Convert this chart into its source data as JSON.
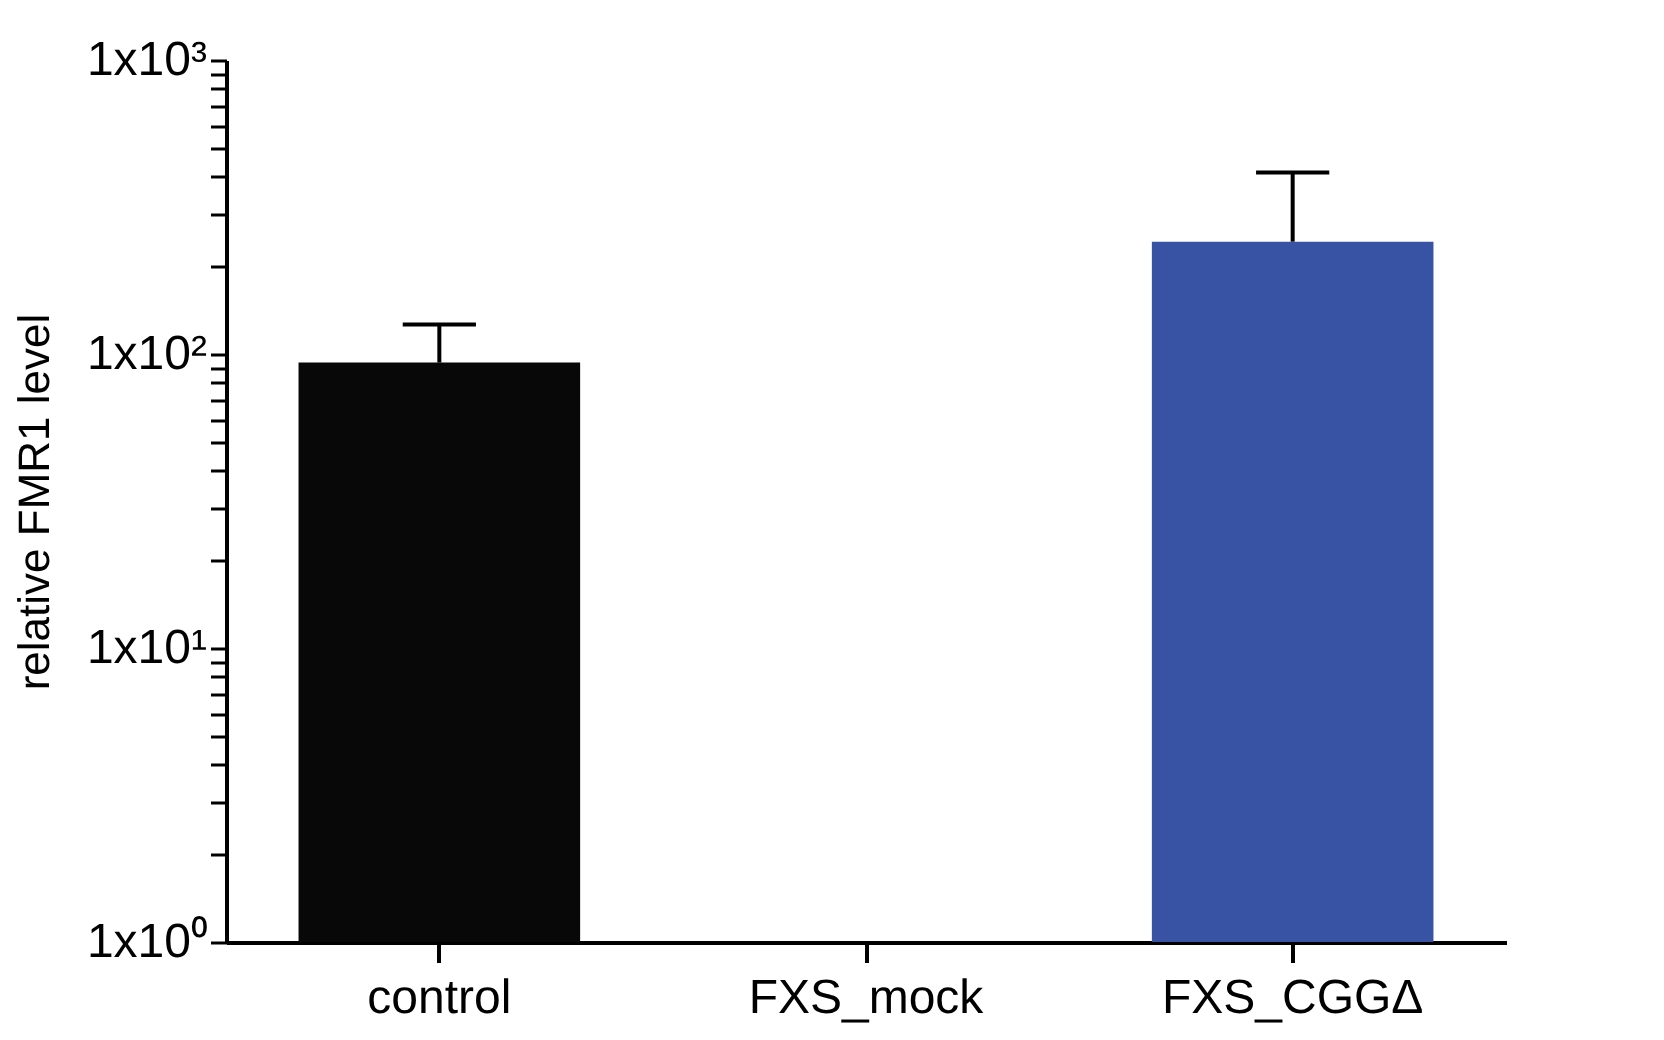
{
  "chart_data": {
    "type": "bar",
    "ylabel": "relative FMR1 level",
    "categories": [
      "control",
      "FXS_mock",
      "FXS_CGGΔ"
    ],
    "values": [
      93.5,
      null,
      241
    ],
    "colors": [
      "#080808",
      "#ffffff",
      "#3953a4"
    ],
    "errors": [
      [
        93.5,
        126
      ],
      null,
      [
        241,
        414
      ]
    ],
    "log": "y",
    "ylim": [
      1,
      1000
    ],
    "yticks": [
      {
        "value": 1,
        "label": "1x10⁰"
      },
      {
        "value": 2,
        "label": null
      },
      {
        "value": 3,
        "label": null
      },
      {
        "value": 4,
        "label": null
      },
      {
        "value": 5,
        "label": null
      },
      {
        "value": 6,
        "label": null
      },
      {
        "value": 7,
        "label": null
      },
      {
        "value": 8,
        "label": null
      },
      {
        "value": 9,
        "label": null
      },
      {
        "value": 10,
        "label": "1x10¹"
      },
      {
        "value": 20,
        "label": null
      },
      {
        "value": 30,
        "label": null
      },
      {
        "value": 40,
        "label": null
      },
      {
        "value": 50,
        "label": null
      },
      {
        "value": 60,
        "label": null
      },
      {
        "value": 70,
        "label": null
      },
      {
        "value": 80,
        "label": null
      },
      {
        "value": 90,
        "label": null
      },
      {
        "value": 100,
        "label": "1x10²"
      },
      {
        "value": 200,
        "label": null
      },
      {
        "value": 300,
        "label": null
      },
      {
        "value": 400,
        "label": null
      },
      {
        "value": 500,
        "label": null
      },
      {
        "value": 600,
        "label": null
      },
      {
        "value": 700,
        "label": null
      },
      {
        "value": 800,
        "label": null
      },
      {
        "value": 900,
        "label": null
      },
      {
        "value": 1000,
        "label": "1x10³"
      }
    ],
    "grid": false
  }
}
